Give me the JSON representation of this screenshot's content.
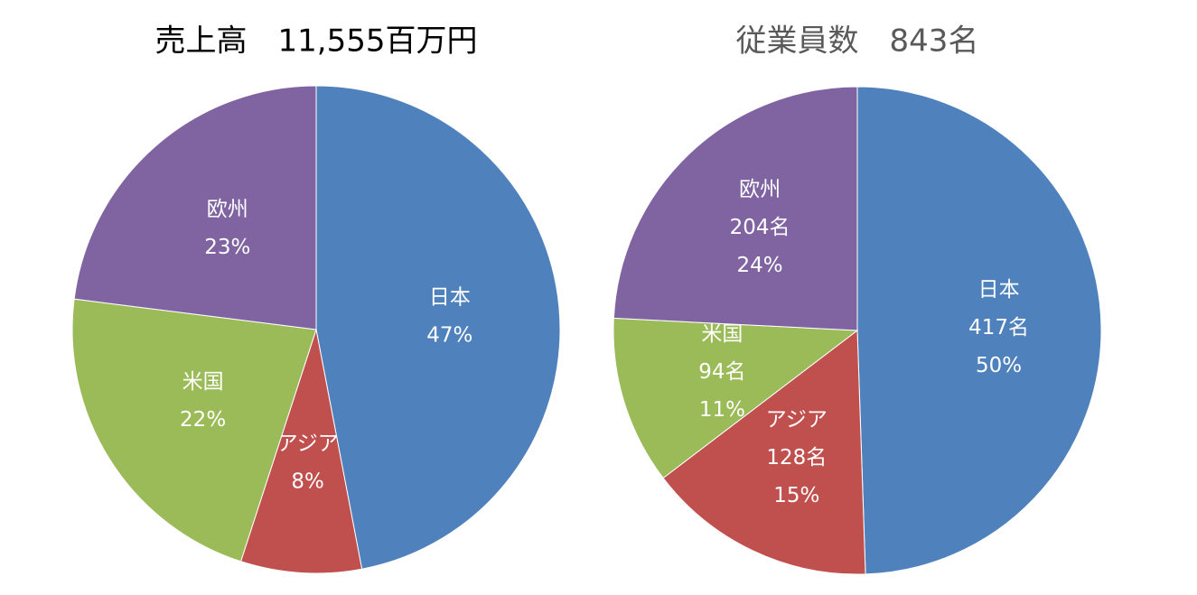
{
  "chart_data": [
    {
      "type": "pie",
      "title": "売上高　11,555百万円",
      "categories": [
        "日本",
        "アジア",
        "米国",
        "欧州"
      ],
      "values": [
        47,
        8,
        22,
        23
      ],
      "value_labels": [
        "47%",
        "8%",
        "22%",
        "23%"
      ],
      "colors": [
        "#4f81bd",
        "#c0504d",
        "#9bbb59",
        "#8064a2"
      ]
    },
    {
      "type": "pie",
      "title": "従業員数　843名",
      "categories": [
        "日本",
        "アジア",
        "米国",
        "欧州"
      ],
      "values": [
        417,
        128,
        94,
        204
      ],
      "value_labels": [
        "417名",
        "128名",
        "94名",
        "204名"
      ],
      "shares": [
        50,
        15,
        11,
        24
      ],
      "share_labels": [
        "50%",
        "15%",
        "11%",
        "24%"
      ],
      "colors": [
        "#4f81bd",
        "#c0504d",
        "#9bbb59",
        "#8064a2"
      ]
    }
  ]
}
